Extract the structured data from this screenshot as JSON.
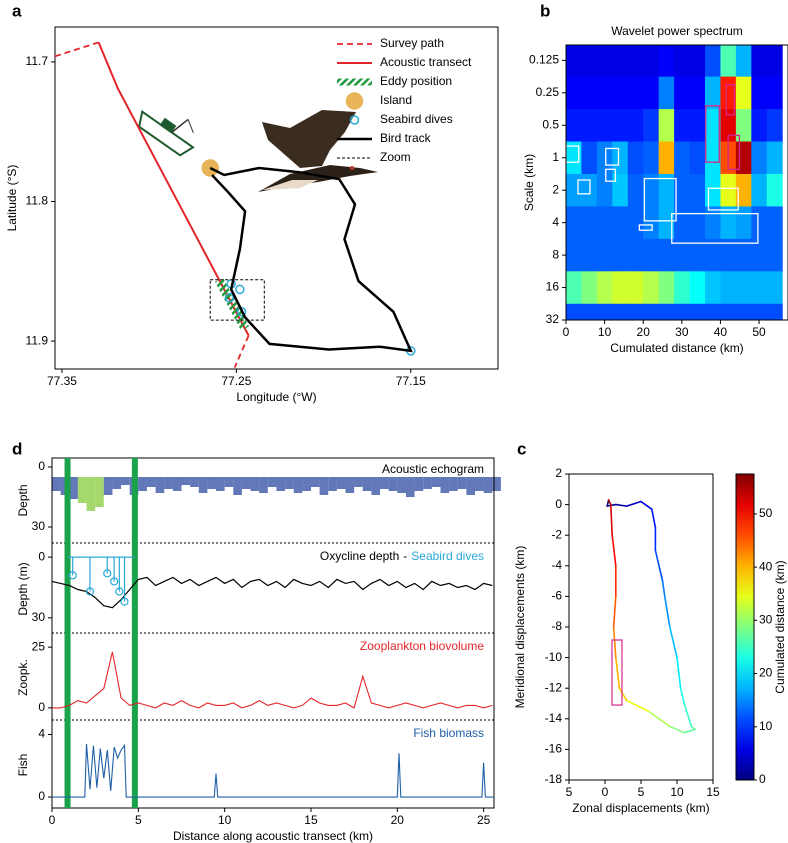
{
  "chart_data": [
    {
      "type": "line",
      "panel": "a",
      "xlabel": "Longitude (°W)",
      "ylabel": "Latitude (°S)",
      "xlim": [
        77.354,
        77.1
      ],
      "ylim": [
        11.92,
        11.675
      ],
      "xticks": [
        77.35,
        77.25,
        77.15
      ],
      "yticks": [
        11.7,
        11.8,
        11.9
      ],
      "series": [
        {
          "name": "Survey path",
          "color": "#e3262b",
          "style": "dashed",
          "x": [
            77.354,
            77.329,
            null,
            77.243,
            77.251
          ],
          "y": [
            11.696,
            11.686,
            null,
            11.896,
            11.919
          ]
        },
        {
          "name": "Acoustic transect",
          "color": "#e3262b",
          "style": "solid",
          "x": [
            77.329,
            77.318,
            77.243
          ],
          "y": [
            11.686,
            11.719,
            11.896
          ]
        },
        {
          "name": "Eddy position",
          "color": "#1f9a3c",
          "style": "hatched",
          "x": [
            77.26,
            77.245
          ],
          "y": [
            11.856,
            11.891
          ]
        },
        {
          "name": "Island",
          "color": "#e8b45a",
          "style": "filled-marker",
          "x": [
            77.265
          ],
          "y": [
            11.776
          ]
        },
        {
          "name": "Seabird dives",
          "color": "#29a8d8",
          "style": "marker",
          "x": [
            77.253,
            77.254,
            77.248,
            77.247,
            77.15
          ],
          "y": [
            11.859,
            11.869,
            11.863,
            11.879,
            11.907
          ]
        },
        {
          "name": "Bird track",
          "color": "#000000",
          "style": "thick",
          "x": [
            77.265,
            77.257,
            77.237,
            77.214,
            77.191,
            77.182,
            77.188,
            77.18,
            77.16,
            77.15,
            77.168,
            77.197,
            77.231,
            77.245,
            77.253,
            77.248,
            77.245,
            77.255,
            77.264
          ],
          "y": [
            11.776,
            11.781,
            11.776,
            11.779,
            11.784,
            11.802,
            11.827,
            11.857,
            11.879,
            11.907,
            11.904,
            11.906,
            11.902,
            11.883,
            11.863,
            11.834,
            11.807,
            11.793,
            11.781
          ]
        },
        {
          "name": "Zoom",
          "color": "#000000",
          "style": "dotted",
          "x": [
            77.265,
            77.234,
            77.234,
            77.265,
            77.265
          ],
          "y": [
            11.856,
            11.856,
            11.885,
            11.885,
            11.856
          ]
        }
      ]
    },
    {
      "type": "heatmap",
      "panel": "b",
      "title": "Wavelet power spectrum",
      "xlabel": "Cumulated distance (km)",
      "ylabel": "Scale (km)",
      "xlim": [
        0,
        57.5
      ],
      "ylim": [
        0.09,
        32
      ],
      "ylog": true,
      "xticks": [
        0,
        10,
        20,
        30,
        40,
        50
      ],
      "yticks": [
        0.125,
        0.25,
        0.5,
        1,
        2,
        4,
        8,
        16,
        32
      ],
      "x": [
        2,
        6,
        10,
        14,
        18,
        22,
        26,
        30,
        34,
        38,
        42,
        46,
        50,
        54
      ],
      "y": [
        0.125,
        0.25,
        0.5,
        1,
        2,
        4,
        8,
        16,
        32
      ],
      "z": [
        [
          0.1,
          0.1,
          0.1,
          0.1,
          0.1,
          0.1,
          0.12,
          0.1,
          0.1,
          0.2,
          0.45,
          0.3,
          0.1,
          0.1
        ],
        [
          0.12,
          0.12,
          0.12,
          0.12,
          0.12,
          0.12,
          0.25,
          0.12,
          0.12,
          0.3,
          0.85,
          0.6,
          0.12,
          0.12
        ],
        [
          0.15,
          0.15,
          0.15,
          0.15,
          0.15,
          0.18,
          0.55,
          0.15,
          0.15,
          0.35,
          0.9,
          0.5,
          0.15,
          0.18
        ],
        [
          0.35,
          0.2,
          0.25,
          0.3,
          0.2,
          0.22,
          0.7,
          0.22,
          0.2,
          0.35,
          0.8,
          0.95,
          0.25,
          0.3
        ],
        [
          0.28,
          0.28,
          0.25,
          0.32,
          0.22,
          0.25,
          0.3,
          0.22,
          0.22,
          0.35,
          0.6,
          0.7,
          0.3,
          0.4
        ],
        [
          0.22,
          0.22,
          0.22,
          0.22,
          0.22,
          0.25,
          0.3,
          0.22,
          0.22,
          0.25,
          0.3,
          0.28,
          0.22,
          0.22
        ],
        [
          0.22,
          0.22,
          0.22,
          0.22,
          0.22,
          0.22,
          0.22,
          0.22,
          0.22,
          0.22,
          0.22,
          0.22,
          0.22,
          0.22
        ],
        [
          0.45,
          0.5,
          0.55,
          0.58,
          0.58,
          0.55,
          0.5,
          0.42,
          0.38,
          0.32,
          0.3,
          0.3,
          0.3,
          0.3
        ],
        [
          0.2,
          0.2,
          0.2,
          0.2,
          0.2,
          0.2,
          0.2,
          0.2,
          0.2,
          0.2,
          0.2,
          0.2,
          0.2,
          0.2
        ]
      ],
      "white_boxes": [
        [
          0,
          3.3,
          0.78,
          1.1
        ],
        [
          10.3,
          13.6,
          0.82,
          1.17
        ],
        [
          10.3,
          12.8,
          1.28,
          1.65
        ],
        [
          3.1,
          6.2,
          1.61,
          2.16
        ],
        [
          20.3,
          28.5,
          1.56,
          3.85
        ],
        [
          36.9,
          44.6,
          1.92,
          3.05
        ],
        [
          27.4,
          49.7,
          3.3,
          6.2
        ],
        [
          19,
          22.3,
          4.2,
          4.7
        ]
      ],
      "magenta_boxes": [
        [
          36.2,
          39.7,
          0.33,
          1.1
        ],
        [
          41.5,
          43.6,
          0.21,
          0.4
        ],
        [
          42,
          44.9,
          0.62,
          1.28
        ]
      ]
    },
    {
      "type": "line",
      "panel": "c",
      "xlabel": "Zonal displacements (km)",
      "ylabel": "Meridional displacements (km)",
      "colorbar_label": "Cumulated distance (km)",
      "xlim": [
        -5,
        15
      ],
      "ylim": [
        -18,
        2
      ],
      "xticks": [
        {
          "value": -5,
          "label": "5"
        },
        0,
        5,
        10,
        15
      ],
      "yticks": [
        2,
        0,
        -2,
        -4,
        -6,
        -8,
        -10,
        -12,
        -14,
        -16,
        -18
      ],
      "clim": [
        0,
        57.5
      ],
      "cticks": [
        0,
        10,
        20,
        30,
        40,
        50
      ],
      "x": [
        0.5,
        0.3,
        1.5,
        3,
        5,
        6.5,
        7,
        7,
        8,
        8.3,
        9,
        10,
        10.5,
        11,
        12,
        12.5,
        11,
        9,
        6,
        3,
        2,
        1.5,
        1.2,
        1.5,
        1.5,
        1,
        0.8,
        0.5
      ],
      "y": [
        0.3,
        -0.1,
        0,
        -0.1,
        0.2,
        -0.3,
        -1.5,
        -3,
        -5,
        -6,
        -8,
        -10,
        -12,
        -13,
        -14.5,
        -14.7,
        -14.9,
        -14.5,
        -13.5,
        -12.8,
        -12,
        -10,
        -8,
        -6,
        -4,
        -2,
        0,
        0.3
      ],
      "color_values": [
        0,
        0.6,
        2,
        3.8,
        6.2,
        8.2,
        9.7,
        11.5,
        14.2,
        15.4,
        17.9,
        20.5,
        23,
        24.4,
        26.4,
        27,
        28.8,
        31.2,
        35,
        38.8,
        40.3,
        42.8,
        45.2,
        47.6,
        50,
        52.6,
        55,
        55.4
      ],
      "zoom_box": {
        "x": [
          0.97,
          2.36
        ],
        "y": [
          -8.85,
          -13.1
        ],
        "color": "#d6288c"
      }
    },
    {
      "type": "echogram",
      "panel": "d",
      "title": "Acoustic echogram",
      "ylabel": "Depth",
      "color": "#3b56a6",
      "xlim": [
        0,
        25.6
      ],
      "ylim": [
        38,
        -4.5
      ],
      "yticks": [
        0,
        30
      ],
      "top": 5,
      "eddy_x": [
        0.9,
        4.8
      ],
      "eddy_color": "#1aa34a",
      "x": [
        0,
        0.5,
        1,
        1.5,
        2,
        2.5,
        3,
        3.5,
        4,
        4.5,
        5,
        5.5,
        6,
        6.5,
        7,
        7.5,
        8,
        8.5,
        9,
        9.5,
        10,
        10.5,
        11,
        11.5,
        12,
        12.5,
        13,
        13.5,
        14,
        14.5,
        15,
        15.5,
        16,
        16.5,
        17,
        17.5,
        18,
        18.5,
        19,
        19.5,
        20,
        20.5,
        21,
        21.5,
        22,
        22.5,
        23,
        23.5,
        24,
        24.5,
        25,
        25.5
      ],
      "values": [
        12,
        14,
        16,
        18,
        22,
        20,
        14,
        11,
        9,
        14,
        12,
        10,
        13,
        11,
        12,
        9,
        10,
        13,
        11,
        12,
        10,
        14,
        11,
        12,
        13,
        10,
        12,
        11,
        13,
        12,
        10,
        14,
        12,
        11,
        13,
        10,
        12,
        14,
        11,
        12,
        13,
        15,
        12,
        11,
        10,
        13,
        12,
        11,
        14,
        12,
        13,
        12
      ]
    },
    {
      "type": "line",
      "ylabel": "Depth (m)",
      "separator": "-",
      "xlim": [
        0,
        25.6
      ],
      "ylim": [
        37.5,
        -6
      ],
      "yticks": [
        0,
        30
      ],
      "x": [
        0,
        0.5,
        1,
        1.5,
        2,
        2.5,
        3,
        3.5,
        4,
        4.5,
        5,
        5.5,
        6,
        6.5,
        7,
        7.5,
        8,
        8.5,
        9,
        9.5,
        10,
        10.5,
        11,
        11.5,
        12,
        12.5,
        13,
        13.5,
        14,
        14.5,
        15,
        15.5,
        16,
        16.5,
        17,
        17.5,
        18,
        18.5,
        19,
        19.5,
        20,
        20.5,
        21,
        21.5,
        22,
        22.5,
        23,
        23.5,
        24,
        24.5,
        25,
        25.5
      ],
      "series": [
        {
          "name": "Oxycline depth",
          "color": "#000000",
          "values": [
            12,
            13,
            14,
            16,
            17,
            20,
            24,
            25,
            21,
            16,
            11,
            10,
            14,
            12,
            10,
            13,
            11,
            14,
            12,
            10,
            13,
            11,
            15,
            12,
            11,
            14,
            12,
            15,
            11,
            13,
            14,
            12,
            15,
            11,
            13,
            12,
            16,
            13,
            11,
            14,
            12,
            15,
            13,
            16,
            12,
            14,
            13,
            15,
            14,
            16,
            13,
            14
          ]
        },
        {
          "name": "Seabird dives",
          "color": "#29a8d8",
          "x": [
            1.2,
            2.2,
            3.2,
            3.6,
            3.9,
            4.2
          ],
          "values": [
            9,
            17,
            8,
            12,
            17,
            22
          ]
        }
      ]
    },
    {
      "type": "line",
      "title": "Zooplankton biovolume",
      "ylabel": "Zoopk.",
      "color": "#e3262b",
      "xlim": [
        0,
        25.6
      ],
      "ylim": [
        -5,
        30
      ],
      "yticks": [
        0,
        25
      ],
      "x": [
        0,
        0.5,
        1,
        1.5,
        2,
        2.5,
        3,
        3.5,
        4,
        4.5,
        5,
        5.5,
        6,
        6.5,
        7,
        7.5,
        8,
        8.5,
        9,
        9.5,
        10,
        10.5,
        11,
        11.5,
        12,
        12.5,
        13,
        13.5,
        14,
        14.5,
        15,
        15.5,
        16,
        16.5,
        17,
        17.5,
        18,
        18.5,
        19,
        19.5,
        20,
        20.5,
        21,
        21.5,
        22,
        22.5,
        23,
        23.5,
        24,
        24.5,
        25,
        25.5
      ],
      "values": [
        0,
        0,
        1,
        3,
        2,
        5,
        8,
        23,
        4,
        1,
        2,
        1,
        0,
        2,
        1,
        3,
        1,
        0,
        2,
        1,
        1,
        2,
        0,
        1,
        3,
        1,
        2,
        1,
        0,
        1,
        4,
        2,
        1,
        1,
        2,
        0,
        13,
        2,
        1,
        0,
        1,
        2,
        1,
        0,
        1,
        2,
        1,
        0,
        1,
        1,
        0,
        1
      ]
    },
    {
      "type": "line",
      "title": "Fish biomass",
      "ylabel": "Fish",
      "xlabel": "Distance along acoustic transect (km)",
      "color": "#1f5fa8",
      "xlim": [
        0,
        25.6
      ],
      "ylim": [
        -0.7,
        4.8
      ],
      "yticks": [
        0,
        4
      ],
      "xticks": [
        0,
        5,
        10,
        15,
        20,
        25
      ],
      "x": [
        0,
        1.9,
        2.0,
        2.2,
        2.4,
        2.6,
        2.8,
        3.0,
        3.2,
        3.4,
        3.6,
        3.8,
        4.0,
        4.2,
        4.3,
        9.4,
        9.5,
        9.6,
        20.0,
        20.1,
        20.2,
        24.9,
        25.0,
        25.1,
        25.6
      ],
      "values": [
        0,
        0,
        3.4,
        0.5,
        3.3,
        0.6,
        3.1,
        1.2,
        3.0,
        0.4,
        3.2,
        2.5,
        3.0,
        3.3,
        0,
        0,
        1.5,
        0,
        0,
        2.8,
        0,
        0,
        2.2,
        0,
        0
      ]
    }
  ]
}
